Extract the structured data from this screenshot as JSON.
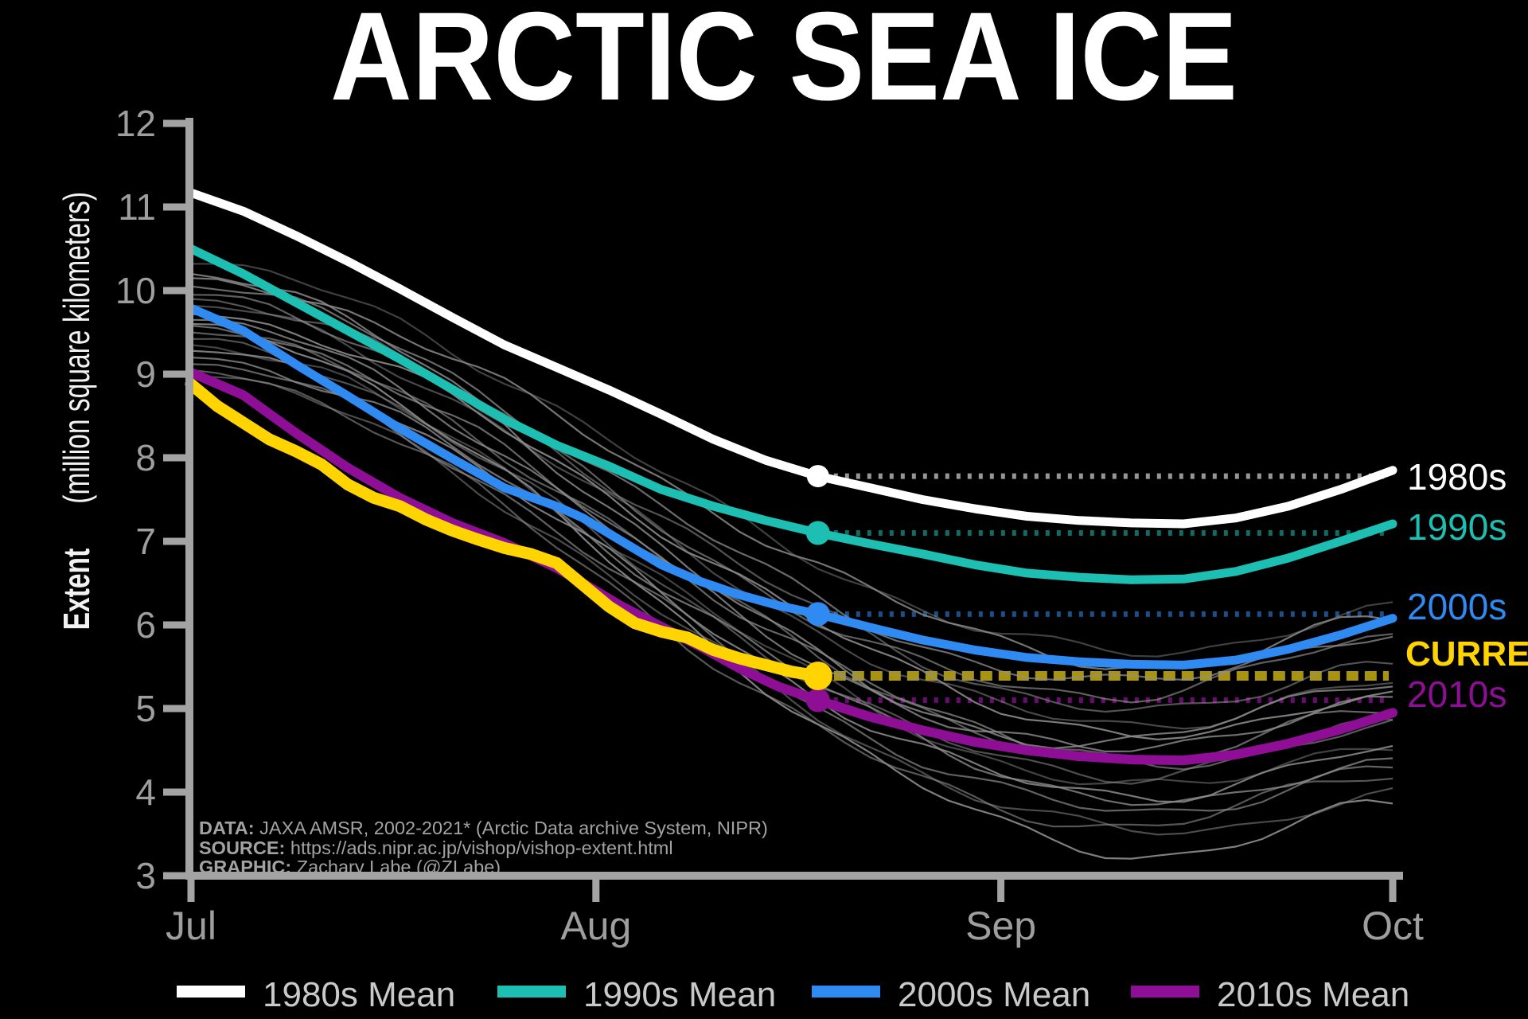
{
  "title": "ARCTIC SEA ICE",
  "y_axis": {
    "label_bold": "Extent",
    "label_rest": " (million square kilometers)",
    "ticks": [
      "12",
      "11",
      "10",
      "9",
      "8",
      "7",
      "6",
      "5",
      "4",
      "3"
    ],
    "range": [
      3,
      12
    ]
  },
  "x_axis": {
    "ticks": [
      "Jul",
      "Aug",
      "Sep",
      "Oct"
    ]
  },
  "right_labels": [
    {
      "text": "1980s",
      "color": "#ffffff"
    },
    {
      "text": "1990s",
      "color": "#1dbfb2"
    },
    {
      "text": "2000s",
      "color": "#2f8af2"
    },
    {
      "text": "CURRENT",
      "color": "#ffd400"
    },
    {
      "text": "2010s",
      "color": "#8e0f96"
    }
  ],
  "legend": {
    "items": [
      {
        "label": "1980s Mean",
        "color": "#ffffff"
      },
      {
        "label": "1990s Mean",
        "color": "#1dbfb2"
      },
      {
        "label": "2000s Mean",
        "color": "#2f8af2"
      },
      {
        "label": "2010s Mean",
        "color": "#8e0f96"
      }
    ]
  },
  "attribution": {
    "data_label": "DATA:",
    "data_text": " JAXA AMSR, 2002-2021* (Arctic Data archive System, NIPR)",
    "source_label": "SOURCE:",
    "source_text": " https://ads.nipr.ac.jp/vishop/vishop-extent.html",
    "graphic_label": "GRAPHIC:",
    "graphic_text": " Zachary Labe (@ZLabe)"
  },
  "chart_data": {
    "type": "line",
    "title": "ARCTIC SEA ICE",
    "xlabel_months": [
      "Jul",
      "Aug",
      "Sep",
      "Oct"
    ],
    "ylabel": "Extent (million square kilometers)",
    "x_unit": "days since Jul 1",
    "xlim": [
      0,
      92
    ],
    "ylim": [
      3,
      12
    ],
    "grid": false,
    "legend_position": "bottom",
    "series": [
      {
        "name": "1980s Mean",
        "color": "#ffffff",
        "width": 11,
        "dot_r": 14,
        "dot_day": 48,
        "dot_value": 7.78,
        "ref_color": "#969696",
        "points": [
          [
            0,
            11.17
          ],
          [
            4,
            10.95
          ],
          [
            8,
            10.66
          ],
          [
            12,
            10.35
          ],
          [
            16,
            10.02
          ],
          [
            20,
            9.68
          ],
          [
            24,
            9.35
          ],
          [
            28,
            9.08
          ],
          [
            32,
            8.81
          ],
          [
            36,
            8.52
          ],
          [
            40,
            8.22
          ],
          [
            44,
            7.97
          ],
          [
            48,
            7.78
          ],
          [
            52,
            7.64
          ],
          [
            56,
            7.5
          ],
          [
            60,
            7.39
          ],
          [
            64,
            7.3
          ],
          [
            68,
            7.25
          ],
          [
            72,
            7.22
          ],
          [
            76,
            7.21
          ],
          [
            80,
            7.28
          ],
          [
            84,
            7.42
          ],
          [
            88,
            7.62
          ],
          [
            92,
            7.85
          ]
        ]
      },
      {
        "name": "1990s Mean",
        "color": "#1dbfb2",
        "width": 11,
        "dot_r": 15,
        "dot_day": 48,
        "dot_value": 7.1,
        "ref_color": "#0f6b63",
        "points": [
          [
            0,
            10.5
          ],
          [
            4,
            10.2
          ],
          [
            8,
            9.86
          ],
          [
            12,
            9.52
          ],
          [
            16,
            9.18
          ],
          [
            20,
            8.82
          ],
          [
            24,
            8.46
          ],
          [
            28,
            8.15
          ],
          [
            32,
            7.9
          ],
          [
            36,
            7.62
          ],
          [
            40,
            7.42
          ],
          [
            44,
            7.25
          ],
          [
            48,
            7.1
          ],
          [
            52,
            6.97
          ],
          [
            56,
            6.85
          ],
          [
            60,
            6.72
          ],
          [
            64,
            6.62
          ],
          [
            68,
            6.57
          ],
          [
            72,
            6.54
          ],
          [
            76,
            6.55
          ],
          [
            80,
            6.64
          ],
          [
            84,
            6.8
          ],
          [
            88,
            7.0
          ],
          [
            92,
            7.21
          ]
        ]
      },
      {
        "name": "2000s Mean",
        "color": "#2f8af2",
        "width": 11,
        "dot_r": 15,
        "dot_day": 48,
        "dot_value": 6.13,
        "ref_color": "#1c4f88",
        "points": [
          [
            0,
            9.79
          ],
          [
            4,
            9.52
          ],
          [
            8,
            9.12
          ],
          [
            12,
            8.74
          ],
          [
            16,
            8.35
          ],
          [
            20,
            7.99
          ],
          [
            24,
            7.64
          ],
          [
            28,
            7.42
          ],
          [
            30,
            7.28
          ],
          [
            33,
            7.0
          ],
          [
            36,
            6.72
          ],
          [
            39,
            6.52
          ],
          [
            42,
            6.36
          ],
          [
            45,
            6.23
          ],
          [
            48,
            6.13
          ],
          [
            52,
            5.97
          ],
          [
            56,
            5.82
          ],
          [
            60,
            5.7
          ],
          [
            64,
            5.61
          ],
          [
            68,
            5.56
          ],
          [
            72,
            5.53
          ],
          [
            76,
            5.52
          ],
          [
            80,
            5.58
          ],
          [
            84,
            5.71
          ],
          [
            88,
            5.88
          ],
          [
            92,
            6.08
          ]
        ]
      },
      {
        "name": "2010s Mean",
        "color": "#8e0f96",
        "width": 12,
        "dot_r": 15,
        "dot_day": 48,
        "dot_value": 5.1,
        "ref_color": "#6b0b70",
        "points": [
          [
            0,
            9.02
          ],
          [
            4,
            8.75
          ],
          [
            8,
            8.3
          ],
          [
            12,
            7.88
          ],
          [
            16,
            7.52
          ],
          [
            20,
            7.22
          ],
          [
            24,
            6.98
          ],
          [
            28,
            6.68
          ],
          [
            30,
            6.5
          ],
          [
            33,
            6.22
          ],
          [
            36,
            5.98
          ],
          [
            39,
            5.74
          ],
          [
            42,
            5.48
          ],
          [
            45,
            5.26
          ],
          [
            48,
            5.1
          ],
          [
            52,
            4.9
          ],
          [
            56,
            4.74
          ],
          [
            60,
            4.6
          ],
          [
            64,
            4.5
          ],
          [
            68,
            4.43
          ],
          [
            72,
            4.39
          ],
          [
            76,
            4.38
          ],
          [
            80,
            4.45
          ],
          [
            84,
            4.58
          ],
          [
            88,
            4.75
          ],
          [
            92,
            4.95
          ]
        ]
      },
      {
        "name": "Current",
        "color": "#ffd400",
        "width": 15,
        "dot_r": 18,
        "dot_day": 48,
        "dot_value": 5.39,
        "ref_color": "#a89410",
        "ref_dash": "15 8",
        "ref_width": 12,
        "points": [
          [
            0,
            8.88
          ],
          [
            2,
            8.62
          ],
          [
            4,
            8.42
          ],
          [
            6,
            8.22
          ],
          [
            8,
            8.08
          ],
          [
            10,
            7.92
          ],
          [
            12,
            7.68
          ],
          [
            14,
            7.52
          ],
          [
            16,
            7.42
          ],
          [
            18,
            7.26
          ],
          [
            20,
            7.13
          ],
          [
            22,
            7.02
          ],
          [
            24,
            6.92
          ],
          [
            26,
            6.85
          ],
          [
            28,
            6.74
          ],
          [
            30,
            6.48
          ],
          [
            32,
            6.22
          ],
          [
            33,
            6.12
          ],
          [
            34,
            6.02
          ],
          [
            35,
            5.97
          ],
          [
            36,
            5.92
          ],
          [
            38,
            5.85
          ],
          [
            40,
            5.7
          ],
          [
            42,
            5.6
          ],
          [
            44,
            5.52
          ],
          [
            46,
            5.44
          ],
          [
            48,
            5.39
          ]
        ]
      }
    ],
    "background_years": {
      "label": "individual years 2002-2021",
      "color": "#8f8f8f",
      "params": [
        [
          10.32,
          5.65,
          74,
          6.2
        ],
        [
          10.15,
          5.5,
          76,
          6.1
        ],
        [
          10.05,
          5.3,
          72,
          5.9
        ],
        [
          9.95,
          5.15,
          70,
          5.8
        ],
        [
          9.9,
          4.95,
          75,
          5.6
        ],
        [
          9.82,
          4.8,
          73,
          5.3
        ],
        [
          9.72,
          4.65,
          77,
          5.2
        ],
        [
          9.65,
          4.5,
          71,
          5.1
        ],
        [
          9.58,
          4.4,
          74,
          5.0
        ],
        [
          9.5,
          4.3,
          76,
          4.85
        ],
        [
          9.42,
          4.2,
          72,
          4.8
        ],
        [
          9.35,
          4.05,
          75,
          4.6
        ],
        [
          9.28,
          3.95,
          73,
          4.5
        ],
        [
          9.2,
          3.85,
          77,
          4.4
        ],
        [
          9.12,
          3.75,
          74,
          4.3
        ],
        [
          9.05,
          3.6,
          72,
          4.2
        ],
        [
          8.98,
          3.5,
          76,
          4.0
        ],
        [
          9.6,
          3.25,
          75,
          3.85
        ],
        [
          10.2,
          4.55,
          70,
          5.35
        ]
      ]
    }
  }
}
